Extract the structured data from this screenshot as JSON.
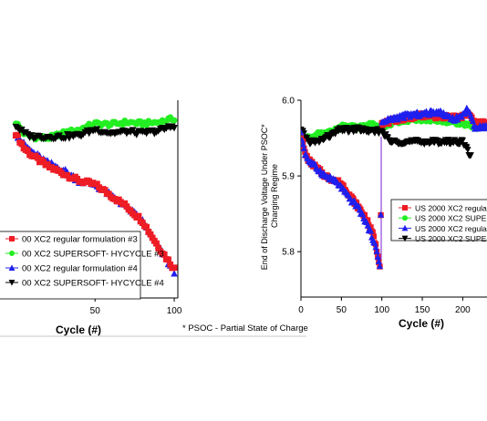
{
  "footnote": "* PSOC - Partial State of Charge",
  "colors": {
    "red": "#ee1c25",
    "green": "#22ee22",
    "blue": "#1f1fee",
    "black": "#000000",
    "purple": "#7a1fd6"
  },
  "chart_data": [
    {
      "type": "scatter",
      "xlabel": "Cycle (#)",
      "ylabel": "",
      "x_ticks": [
        "50",
        "100"
      ],
      "xlim": [
        -10,
        104
      ],
      "ylim": [
        5.73,
        6.0
      ],
      "grid": false,
      "legend_position": "bottom-left",
      "legend": [
        "00 XC2 regular formulation  #3",
        "00 XC2 SUPERSOFT- HYCYCLE #3",
        "00 XC2 regular formulation #4",
        "00 XC2 SUPERSOFT- HYCYCLE #4"
      ],
      "series": [
        {
          "name": "00 XC2 regular formulation  #3",
          "color": "red",
          "marker": "square",
          "x": [
            0,
            5,
            10,
            20,
            30,
            40,
            50,
            60,
            70,
            80,
            90,
            100
          ],
          "y": [
            5.955,
            5.935,
            5.925,
            5.91,
            5.9,
            5.89,
            5.885,
            5.87,
            5.855,
            5.835,
            5.8,
            5.77
          ]
        },
        {
          "name": "00 XC2 SUPERSOFT- HYCYCLE #3",
          "color": "green",
          "marker": "circle",
          "x": [
            0,
            5,
            10,
            20,
            30,
            40,
            50,
            60,
            70,
            80,
            90,
            100
          ],
          "y": [
            5.97,
            5.955,
            5.95,
            5.948,
            5.955,
            5.96,
            5.968,
            5.967,
            5.97,
            5.968,
            5.97,
            5.975
          ]
        },
        {
          "name": "00 XC2 regular formulation #4",
          "color": "blue",
          "marker": "triangle-up",
          "x": [
            0,
            5,
            10,
            20,
            30,
            40,
            50,
            60,
            70,
            80,
            90,
            100
          ],
          "y": [
            5.955,
            5.94,
            5.93,
            5.915,
            5.905,
            5.89,
            5.885,
            5.87,
            5.855,
            5.835,
            5.8,
            5.765
          ]
        },
        {
          "name": "00 XC2 SUPERSOFT- HYCYCLE #4",
          "color": "black",
          "marker": "triangle-down",
          "x": [
            0,
            5,
            10,
            20,
            30,
            40,
            50,
            60,
            70,
            80,
            90,
            100
          ],
          "y": [
            5.965,
            5.955,
            5.95,
            5.95,
            5.95,
            5.952,
            5.96,
            5.955,
            5.957,
            5.955,
            5.958,
            5.965
          ]
        }
      ]
    },
    {
      "type": "scatter",
      "xlabel": "Cycle (#)",
      "ylabel": "End of Discharge Voltage Under PSOC* Charging Regime",
      "x_ticks": [
        "0",
        "50",
        "100",
        "150",
        "200"
      ],
      "y_ticks": [
        "5.8",
        "5.9",
        "6.0"
      ],
      "xlim": [
        0,
        230
      ],
      "ylim": [
        5.74,
        6.0
      ],
      "grid": false,
      "legend_position": "middle-right",
      "legend": [
        "US 2000 XC2 regula",
        "US 2000 XC2 SUPE",
        "US 2000 XC2 regula",
        "US 2000 XC2 SUPE"
      ],
      "series": [
        {
          "name": "US 2000 XC2 regula",
          "color": "red",
          "marker": "square",
          "x": [
            0,
            5,
            10,
            20,
            30,
            40,
            50,
            60,
            70,
            80,
            90,
            98,
            100,
            105,
            120,
            150,
            180,
            200,
            205,
            215,
            230
          ],
          "y": [
            5.955,
            5.93,
            5.92,
            5.91,
            5.9,
            5.895,
            5.89,
            5.875,
            5.86,
            5.845,
            5.82,
            5.78,
            5.97,
            5.97,
            5.975,
            5.98,
            5.978,
            5.978,
            5.985,
            5.97,
            5.97
          ]
        },
        {
          "name": "US 2000 XC2 SUPE",
          "color": "green",
          "marker": "circle",
          "x": [
            0,
            10,
            20,
            30,
            40,
            50,
            60,
            70,
            80,
            90,
            100,
            120,
            150,
            180,
            200,
            210,
            230
          ],
          "y": [
            5.955,
            5.95,
            5.955,
            5.955,
            5.96,
            5.965,
            5.965,
            5.965,
            5.965,
            5.97,
            5.965,
            5.972,
            5.975,
            5.972,
            5.97,
            5.965,
            5.965
          ]
        },
        {
          "name": "US 2000 XC2 regula",
          "color": "blue",
          "marker": "triangle-up",
          "x": [
            0,
            5,
            10,
            20,
            30,
            40,
            50,
            60,
            70,
            80,
            90,
            98,
            100,
            110,
            130,
            150,
            170,
            190,
            200,
            205,
            215,
            230
          ],
          "y": [
            5.955,
            5.93,
            5.92,
            5.91,
            5.9,
            5.895,
            5.885,
            5.87,
            5.86,
            5.84,
            5.815,
            5.78,
            5.97,
            5.975,
            5.98,
            5.982,
            5.985,
            5.975,
            5.98,
            5.99,
            5.965,
            5.965
          ]
        },
        {
          "name": "US 2000 XC2 SUPE",
          "color": "black",
          "marker": "triangle-down",
          "x": [
            0,
            10,
            20,
            30,
            40,
            50,
            60,
            70,
            80,
            90,
            100,
            110,
            130,
            150,
            170,
            190,
            200,
            205,
            210
          ],
          "y": [
            5.96,
            5.945,
            5.945,
            5.95,
            5.955,
            5.962,
            5.96,
            5.962,
            5.96,
            5.958,
            5.96,
            5.945,
            5.945,
            5.945,
            5.945,
            5.945,
            5.945,
            5.935,
            5.925
          ]
        }
      ]
    }
  ]
}
